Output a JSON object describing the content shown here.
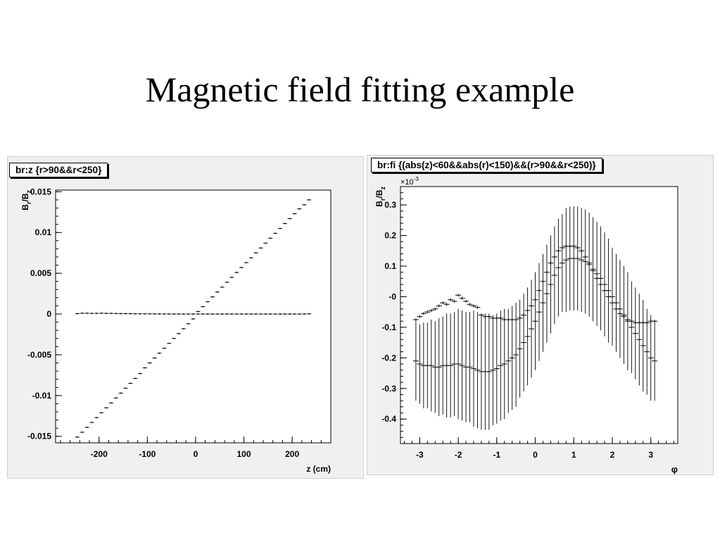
{
  "slide": {
    "title": "Magnetic field fitting example"
  },
  "colors": {
    "panel_bg": "#f0f0f0",
    "frame_bg": "#ffffff",
    "marker": "#000000"
  },
  "chart_data": [
    {
      "type": "scatter",
      "stat_title": "br:z {r>90&&r<250}",
      "xlabel": "z (cm)",
      "ylabel": "Br/Bz",
      "ylabel_main": "B",
      "ylabel_sub1": "r",
      "ylabel_sep": "/B",
      "ylabel_sub2": "z",
      "xlim": [
        -290,
        280
      ],
      "ylim": [
        -0.0158,
        0.0152
      ],
      "x_ticks": [
        -200,
        -100,
        0,
        100,
        200
      ],
      "x_tick_labels": [
        "-200",
        "-100",
        "0",
        "100",
        "200"
      ],
      "y_ticks": [
        -0.015,
        -0.01,
        -0.005,
        0,
        0.005,
        0.01,
        0.015
      ],
      "y_tick_labels": [
        "-0.015",
        "-0.01",
        "-0.005",
        "0",
        "0.005",
        "0.01",
        "0.015"
      ],
      "grid": false,
      "series": [
        {
          "x": [
            -245,
            -235,
            -225,
            -215,
            -205,
            -195,
            -185,
            -175,
            -165,
            -155,
            -145,
            -135,
            -125,
            -115,
            -105,
            -95,
            -85,
            -75,
            -65,
            -55,
            -45,
            -35,
            -25,
            -15,
            -5,
            5,
            15,
            25,
            35,
            45,
            55,
            65,
            75,
            85,
            95,
            105,
            115,
            125,
            135,
            145,
            155,
            165,
            175,
            185,
            195,
            205,
            215,
            225,
            235
          ],
          "y": [
            -0.0151,
            -0.0145,
            -0.0139,
            -0.0133,
            -0.0127,
            -0.0121,
            -0.0115,
            -0.0109,
            -0.0103,
            -0.0097,
            -0.0091,
            -0.0085,
            -0.0079,
            -0.0073,
            -0.0066,
            -0.006,
            -0.0054,
            -0.0048,
            -0.0042,
            -0.0036,
            -0.003,
            -0.0024,
            -0.0018,
            -0.0012,
            -0.0006,
            0.0003,
            0.0009,
            0.0015,
            0.0021,
            0.0027,
            0.0033,
            0.0039,
            0.0045,
            0.0051,
            0.0057,
            0.0063,
            0.0069,
            0.0075,
            0.0081,
            0.0087,
            0.0093,
            0.0099,
            0.0105,
            0.0111,
            0.0117,
            0.0123,
            0.0129,
            0.0134,
            0.014
          ]
        },
        {
          "x": [
            -245,
            -235,
            -225,
            -215,
            -205,
            -195,
            -185,
            -175,
            -165,
            -155,
            -145,
            -135,
            -125,
            -115,
            -105,
            -95,
            -85,
            -75,
            -65,
            -55,
            -45,
            -35,
            -25,
            -15,
            -5,
            5,
            15,
            25,
            35,
            45,
            55,
            65,
            75,
            85,
            95,
            105,
            115,
            125,
            135,
            145,
            155,
            165,
            175,
            185,
            195,
            205,
            215,
            225,
            235
          ],
          "y": [
            5e-05,
            0.0001,
            0.0001,
            8e-05,
            8e-05,
            0.0001,
            8e-05,
            8e-05,
            6e-05,
            5e-05,
            5e-05,
            4e-05,
            3e-05,
            3e-05,
            2e-05,
            2e-05,
            1e-05,
            1e-05,
            1e-05,
            0.0,
            0.0,
            0.0,
            0.0,
            0.0,
            0.0,
            0.0,
            0.0,
            0.0,
            0.0,
            0.0,
            0.0,
            0.0,
            0.0,
            0.0,
            0.0,
            0.0,
            0.0,
            0.0,
            0.0,
            0.0,
            0.0,
            0.0,
            0.0,
            0.0,
            0.0,
            0.0,
            0.0,
            0.0,
            3e-05
          ]
        }
      ]
    },
    {
      "type": "scatter",
      "stat_title": "br:fi {(abs(z)<60&&abs(r)<150)&&(r>90&&r<250)}",
      "xlabel": "φ",
      "ylabel": "Br/Bz",
      "ylabel_main": "B",
      "ylabel_sub1": "r",
      "ylabel_sep": "/B",
      "ylabel_sub2": "z",
      "exponent_label": "×10",
      "exponent_power": "-3",
      "xlim": [
        -3.5,
        3.7
      ],
      "ylim": [
        -0.48,
        0.36
      ],
      "x_ticks": [
        -3,
        -2,
        -1,
        0,
        1,
        2,
        3
      ],
      "x_tick_labels": [
        "-3",
        "-2",
        "-1",
        "0",
        "1",
        "2",
        "3"
      ],
      "y_ticks": [
        -0.4,
        -0.3,
        -0.2,
        -0.1,
        0,
        0.1,
        0.2,
        0.3
      ],
      "y_tick_labels": [
        "-0.4",
        "-0.3",
        "-0.2",
        "-0.1",
        "-0",
        "0.1",
        "0.2",
        "0.3"
      ],
      "grid": false,
      "series": [
        {
          "x": [
            -3.1,
            -3.0,
            -2.9,
            -2.8,
            -2.7,
            -2.6,
            -2.5,
            -2.4,
            -2.3,
            -2.2,
            -2.1,
            -2.0,
            -1.9,
            -1.8,
            -1.7,
            -1.6,
            -1.5,
            -1.4,
            -1.3,
            -1.2,
            -1.1,
            -1.0,
            -0.9,
            -0.8,
            -0.7,
            -0.6,
            -0.5,
            -0.4,
            -0.3,
            -0.2,
            -0.1,
            0.0,
            0.1,
            0.2,
            0.3,
            0.4,
            0.5,
            0.6,
            0.7,
            0.8,
            0.9,
            1.0,
            1.1,
            1.2,
            1.3,
            1.4,
            1.5,
            1.6,
            1.7,
            1.8,
            1.9,
            2.0,
            2.1,
            2.2,
            2.3,
            2.4,
            2.5,
            2.6,
            2.7,
            2.8,
            2.9,
            3.0,
            3.1
          ],
          "y": [
            -0.21,
            -0.22,
            -0.225,
            -0.225,
            -0.225,
            -0.23,
            -0.23,
            -0.225,
            -0.225,
            -0.225,
            -0.22,
            -0.22,
            -0.225,
            -0.23,
            -0.23,
            -0.235,
            -0.24,
            -0.245,
            -0.245,
            -0.245,
            -0.24,
            -0.235,
            -0.225,
            -0.22,
            -0.21,
            -0.2,
            -0.19,
            -0.17,
            -0.15,
            -0.13,
            -0.105,
            -0.08,
            -0.05,
            -0.02,
            0.01,
            0.04,
            0.07,
            0.095,
            0.11,
            0.12,
            0.125,
            0.125,
            0.125,
            0.12,
            0.115,
            0.105,
            0.09,
            0.075,
            0.06,
            0.04,
            0.02,
            0.0,
            -0.02,
            -0.04,
            -0.06,
            -0.08,
            -0.1,
            -0.12,
            -0.14,
            -0.16,
            -0.18,
            -0.2,
            -0.21
          ],
          "err": [
            0.13,
            0.13,
            0.14,
            0.14,
            0.15,
            0.15,
            0.16,
            0.16,
            0.17,
            0.17,
            0.17,
            0.18,
            0.18,
            0.18,
            0.18,
            0.19,
            0.19,
            0.19,
            0.19,
            0.19,
            0.18,
            0.18,
            0.18,
            0.18,
            0.17,
            0.17,
            0.17,
            0.16,
            0.16,
            0.16,
            0.16,
            0.16,
            0.16,
            0.16,
            0.16,
            0.16,
            0.16,
            0.16,
            0.16,
            0.17,
            0.17,
            0.17,
            0.17,
            0.17,
            0.17,
            0.17,
            0.17,
            0.17,
            0.17,
            0.17,
            0.17,
            0.16,
            0.16,
            0.16,
            0.16,
            0.16,
            0.15,
            0.15,
            0.15,
            0.15,
            0.14,
            0.14,
            0.13
          ]
        },
        {
          "x": [
            -3.1,
            -3.0,
            -2.9,
            -2.8,
            -2.7,
            -2.6,
            -2.5,
            -2.4,
            -2.3,
            -2.2,
            -2.1,
            -2.0,
            -1.9,
            -1.8,
            -1.7,
            -1.6,
            -1.5,
            -1.4,
            -1.3,
            -1.2,
            -1.1,
            -1.0,
            -0.9,
            -0.8,
            -0.7,
            -0.6,
            -0.5,
            -0.4,
            -0.3,
            -0.2,
            -0.1,
            0.0,
            0.1,
            0.2,
            0.3,
            0.4,
            0.5,
            0.6,
            0.7,
            0.8,
            0.9,
            1.0,
            1.1,
            1.2,
            1.3,
            1.4,
            1.5,
            1.6,
            1.7,
            1.8,
            1.9,
            2.0,
            2.1,
            2.2,
            2.3,
            2.4,
            2.5,
            2.6,
            2.7,
            2.8,
            2.9,
            3.0,
            3.1
          ],
          "y": [
            -0.075,
            -0.065,
            -0.055,
            -0.05,
            -0.045,
            -0.04,
            -0.03,
            -0.02,
            -0.025,
            -0.01,
            -0.015,
            0.005,
            -0.005,
            -0.015,
            -0.025,
            -0.03,
            -0.035,
            -0.06,
            -0.065,
            -0.065,
            -0.07,
            -0.07,
            -0.07,
            -0.075,
            -0.075,
            -0.075,
            -0.075,
            -0.07,
            -0.06,
            -0.045,
            -0.03,
            -0.01,
            0.02,
            0.05,
            0.08,
            0.11,
            0.13,
            0.15,
            0.16,
            0.165,
            0.165,
            0.165,
            0.16,
            0.15,
            0.13,
            0.11,
            0.085,
            0.06,
            0.04,
            0.02,
            0.0,
            -0.02,
            -0.04,
            -0.055,
            -0.065,
            -0.075,
            -0.08,
            -0.085,
            -0.085,
            -0.085,
            -0.085,
            -0.08,
            -0.08
          ],
          "err": [
            0.005,
            0.005,
            0.005,
            0.005,
            0.005,
            0.005,
            0.005,
            0.005,
            0.005,
            0.005,
            0.005,
            0.005,
            0.005,
            0.005,
            0.005,
            0.005,
            0.005,
            0.005,
            0.005,
            0.005,
            0.005,
            0.005,
            0.005,
            0.005,
            0.005,
            0.005,
            0.005,
            0.005,
            0.005,
            0.005,
            0.005,
            0.005,
            0.005,
            0.005,
            0.005,
            0.005,
            0.005,
            0.005,
            0.005,
            0.005,
            0.005,
            0.005,
            0.005,
            0.005,
            0.005,
            0.005,
            0.005,
            0.005,
            0.005,
            0.005,
            0.005,
            0.005,
            0.005,
            0.005,
            0.005,
            0.005,
            0.005,
            0.005,
            0.005,
            0.005,
            0.005,
            0.005,
            0.005
          ]
        }
      ]
    }
  ]
}
